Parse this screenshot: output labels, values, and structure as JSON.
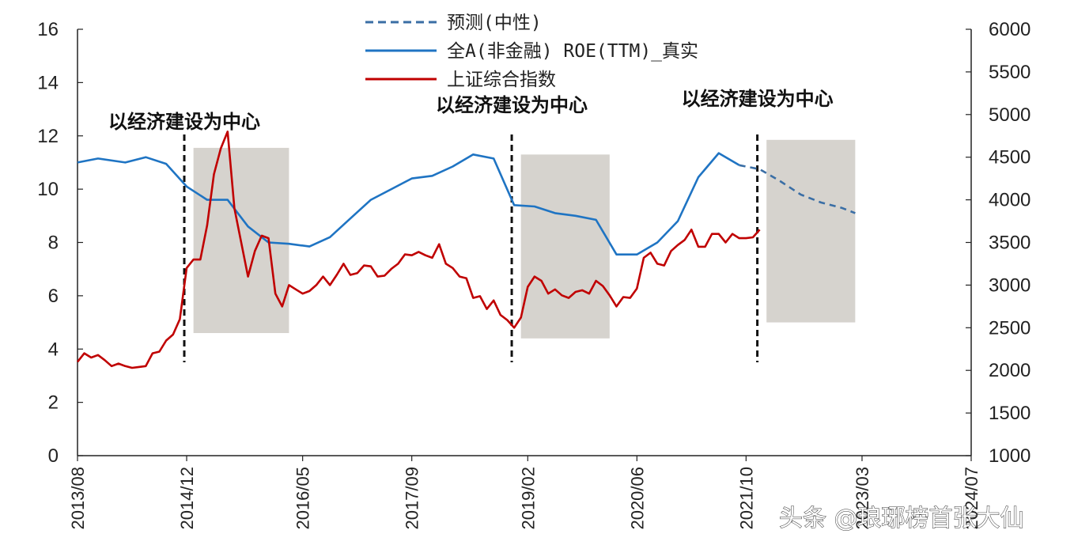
{
  "chart_data": {
    "type": "line",
    "legend": {
      "placement": "top-center",
      "entries": [
        {
          "label": "预测(中性)",
          "color": "#3a6ea5",
          "style": "dashed"
        },
        {
          "label": "全A(非金融) ROE(TTM)_真实",
          "color": "#1f74c3",
          "style": "solid"
        },
        {
          "label": "上证综合指数",
          "color": "#c00000",
          "style": "solid"
        }
      ]
    },
    "x_ticks": [
      "2013/08",
      "2014/12",
      "2016/05",
      "2017/09",
      "2019/02",
      "2020/06",
      "2021/10",
      "2023/03",
      "2024/07"
    ],
    "x_range": [
      "2013-08",
      "2024-07"
    ],
    "y_left": {
      "range": [
        0,
        16
      ],
      "ticks": [
        0,
        2,
        4,
        6,
        8,
        10,
        12,
        14,
        16
      ]
    },
    "y_right": {
      "range": [
        1000,
        6000
      ],
      "ticks": [
        1000,
        1500,
        2000,
        2500,
        3000,
        3500,
        4000,
        4500,
        5000,
        5500,
        6000
      ]
    },
    "annotations": [
      {
        "text": "以经济建设为中心",
        "vline_date": "2014-12"
      },
      {
        "text": "以经济建设为中心",
        "vline_date": "2018-12"
      },
      {
        "text": "以经济建设为中心",
        "vline_date": "2021-12"
      }
    ],
    "shaded_regions": [
      {
        "start": "2015-01",
        "end": "2016-03",
        "ylow": 4.6,
        "yhigh": 11.55
      },
      {
        "start": "2019-01",
        "end": "2020-02",
        "ylow": 4.4,
        "yhigh": 11.3
      },
      {
        "start": "2022-01",
        "end": "2023-02",
        "ylow": 5.0,
        "yhigh": 11.85
      }
    ],
    "series": [
      {
        "name": "全A(非金融) ROE(TTM)_真实",
        "axis": "left",
        "color": "#1f74c3",
        "x": [
          "2013-08",
          "2013-11",
          "2014-03",
          "2014-06",
          "2014-09",
          "2014-12",
          "2015-03",
          "2015-06",
          "2015-09",
          "2015-12",
          "2016-03",
          "2016-06",
          "2016-09",
          "2016-12",
          "2017-03",
          "2017-06",
          "2017-09",
          "2017-12",
          "2018-03",
          "2018-06",
          "2018-09",
          "2018-12",
          "2019-03",
          "2019-06",
          "2019-09",
          "2019-12",
          "2020-03",
          "2020-06",
          "2020-09",
          "2020-12",
          "2021-03",
          "2021-06",
          "2021-09"
        ],
        "y": [
          11.0,
          11.15,
          11.0,
          11.2,
          10.95,
          10.1,
          9.6,
          9.6,
          8.6,
          8.0,
          7.95,
          7.85,
          8.2,
          8.9,
          9.6,
          10.0,
          10.4,
          10.5,
          10.85,
          11.3,
          11.15,
          9.4,
          9.35,
          9.1,
          9.0,
          8.85,
          7.55,
          7.55,
          8.0,
          8.8,
          10.45,
          11.35,
          10.9
        ]
      },
      {
        "name": "预测(中性)",
        "axis": "left",
        "color": "#3a6ea5",
        "x": [
          "2021-09",
          "2021-12",
          "2022-03",
          "2022-06",
          "2022-09",
          "2022-12",
          "2023-02"
        ],
        "y": [
          10.9,
          10.75,
          10.3,
          9.8,
          9.5,
          9.3,
          9.1
        ]
      },
      {
        "name": "上证综合指数",
        "axis": "right",
        "color": "#c00000",
        "x": [
          "2013-08",
          "2013-09",
          "2013-10",
          "2013-11",
          "2013-12",
          "2014-01",
          "2014-02",
          "2014-03",
          "2014-04",
          "2014-05",
          "2014-06",
          "2014-07",
          "2014-08",
          "2014-09",
          "2014-10",
          "2014-11",
          "2014-12",
          "2015-01",
          "2015-02",
          "2015-03",
          "2015-04",
          "2015-05",
          "2015-06",
          "2015-07",
          "2015-08",
          "2015-09",
          "2015-10",
          "2015-11",
          "2015-12",
          "2016-01",
          "2016-02",
          "2016-03",
          "2016-04",
          "2016-05",
          "2016-06",
          "2016-07",
          "2016-08",
          "2016-09",
          "2016-10",
          "2016-11",
          "2016-12",
          "2017-01",
          "2017-02",
          "2017-03",
          "2017-04",
          "2017-05",
          "2017-06",
          "2017-07",
          "2017-08",
          "2017-09",
          "2017-10",
          "2017-11",
          "2017-12",
          "2018-01",
          "2018-02",
          "2018-03",
          "2018-04",
          "2018-05",
          "2018-06",
          "2018-07",
          "2018-08",
          "2018-09",
          "2018-10",
          "2018-11",
          "2018-12",
          "2019-01",
          "2019-02",
          "2019-03",
          "2019-04",
          "2019-05",
          "2019-06",
          "2019-07",
          "2019-08",
          "2019-09",
          "2019-10",
          "2019-11",
          "2019-12",
          "2020-01",
          "2020-02",
          "2020-03",
          "2020-04",
          "2020-05",
          "2020-06",
          "2020-07",
          "2020-08",
          "2020-09",
          "2020-10",
          "2020-11",
          "2020-12",
          "2021-01",
          "2021-02",
          "2021-03",
          "2021-04",
          "2021-05",
          "2021-06",
          "2021-07",
          "2021-08",
          "2021-09",
          "2021-10",
          "2021-11",
          "2021-12"
        ],
        "y": [
          2100,
          2200,
          2150,
          2180,
          2120,
          2050,
          2080,
          2050,
          2030,
          2040,
          2050,
          2200,
          2220,
          2350,
          2420,
          2600,
          3200,
          3300,
          3300,
          3700,
          4300,
          4600,
          4800,
          3900,
          3500,
          3100,
          3400,
          3580,
          3550,
          2900,
          2750,
          3000,
          2950,
          2900,
          2930,
          3000,
          3100,
          3000,
          3120,
          3250,
          3120,
          3140,
          3230,
          3220,
          3100,
          3110,
          3190,
          3250,
          3360,
          3350,
          3390,
          3350,
          3320,
          3480,
          3250,
          3200,
          3100,
          3080,
          2850,
          2870,
          2720,
          2820,
          2650,
          2590,
          2500,
          2620,
          2980,
          3100,
          3050,
          2900,
          2950,
          2880,
          2850,
          2920,
          2940,
          2900,
          3050,
          2990,
          2880,
          2750,
          2860,
          2850,
          2960,
          3320,
          3380,
          3250,
          3230,
          3400,
          3470,
          3530,
          3650,
          3450,
          3450,
          3600,
          3600,
          3500,
          3600,
          3550,
          3550,
          3560,
          3650
        ]
      }
    ]
  },
  "watermark": "头条 @琅琊榜首张大仙"
}
